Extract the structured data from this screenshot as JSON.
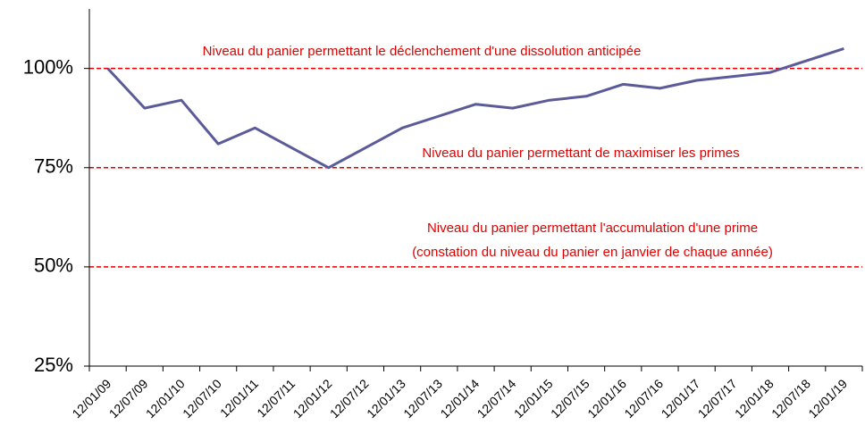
{
  "chart_data": {
    "type": "line",
    "categories": [
      "12/01/09",
      "12/07/09",
      "12/01/10",
      "12/07/10",
      "12/01/11",
      "12/07/11",
      "12/01/12",
      "12/07/12",
      "12/01/13",
      "12/07/13",
      "12/01/14",
      "12/07/14",
      "12/01/15",
      "12/07/15",
      "12/01/16",
      "12/07/16",
      "12/01/17",
      "12/07/17",
      "12/01/18",
      "12/07/18",
      "12/01/19"
    ],
    "values": [
      100,
      90,
      92,
      81,
      85,
      80,
      75,
      80,
      85,
      88,
      91,
      90,
      92,
      93,
      96,
      95,
      97,
      98,
      99,
      102,
      105
    ],
    "color": "#5b5b9a",
    "ylim": [
      25,
      115
    ],
    "yticks": [
      {
        "value": 25,
        "label": "25%"
      },
      {
        "value": 50,
        "label": "50%"
      },
      {
        "value": 75,
        "label": "75%"
      },
      {
        "value": 100,
        "label": "100%"
      }
    ],
    "reference_lines": [
      {
        "value": 100,
        "color": "#e00000",
        "label": [
          "Niveau du panier permettant le déclenchement d'une dissolution anticipée"
        ]
      },
      {
        "value": 75,
        "color": "#e00000",
        "label": [
          "Niveau du panier permettant de maximiser les primes"
        ]
      },
      {
        "value": 50,
        "color": "#e00000",
        "label": [
          "Niveau du panier permettant l'accumulation d'une prime",
          "(constation du niveau du panier en janvier de chaque année)"
        ]
      }
    ]
  }
}
